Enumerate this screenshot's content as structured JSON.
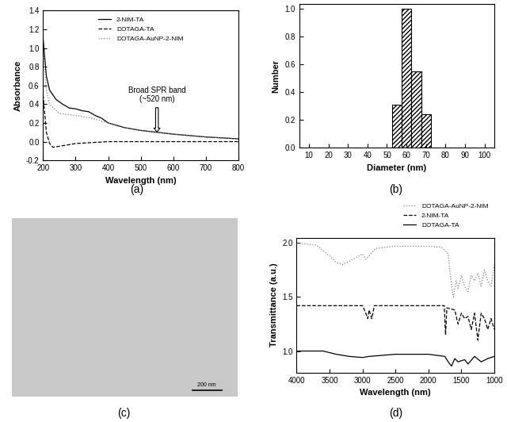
{
  "chart_data": [
    {
      "type": "line",
      "caption": "(a)",
      "x_label": "Wavelength (nm)",
      "y_label": "Absorbance",
      "xlim": [
        200,
        800
      ],
      "xticks": [
        200,
        300,
        400,
        500,
        600,
        700,
        800
      ],
      "ylim": [
        -0.2,
        1.4
      ],
      "yticks": [
        -0.2,
        {
          "value": 0.0,
          "label": "0.0"
        },
        0.2,
        0.4,
        0.6,
        0.8,
        {
          "value": 1.0,
          "label": "1.0"
        },
        1.2,
        1.4
      ],
      "grid": false,
      "legend": "upper center",
      "annotations": [
        {
          "text": "Broad SPR band\n(~520 nm)",
          "x": 550,
          "y": 0.08
        }
      ],
      "series": [
        {
          "name": "2-NIM-TA",
          "color": "#000000",
          "line_style": "solid",
          "x": [
            200,
            210,
            220,
            240,
            260,
            280,
            300,
            320,
            340,
            360,
            380,
            400,
            450,
            500,
            550,
            600,
            700,
            800
          ],
          "values": [
            1.1,
            0.7,
            0.55,
            0.45,
            0.4,
            0.36,
            0.35,
            0.33,
            0.32,
            0.28,
            0.25,
            0.2,
            0.15,
            0.12,
            0.1,
            0.08,
            0.05,
            0.03
          ]
        },
        {
          "name": "DOTAGA-TA",
          "color": "#000000",
          "line_style": "dashed",
          "x": [
            200,
            210,
            220,
            230,
            250,
            300,
            400,
            800
          ],
          "values": [
            0.5,
            0.1,
            -0.02,
            -0.06,
            -0.05,
            -0.02,
            0.0,
            0.0
          ]
        },
        {
          "name": "DOTAGA-AuNP-2-NIM",
          "color": "#808080",
          "line_style": "dotted",
          "x": [
            200,
            210,
            220,
            250,
            300,
            350,
            400,
            450,
            500,
            550,
            600,
            700,
            800
          ],
          "values": [
            1.0,
            0.55,
            0.4,
            0.3,
            0.28,
            0.25,
            0.2,
            0.15,
            0.12,
            0.1,
            0.08,
            0.05,
            0.03
          ]
        }
      ]
    },
    {
      "type": "histogram",
      "caption": "(b)",
      "x_label": "Diameter (nm)",
      "y_label": "Number",
      "xlim": [
        5,
        105
      ],
      "xticks": [
        10,
        20,
        30,
        40,
        50,
        60,
        70,
        80,
        90,
        100
      ],
      "ylim": [
        0,
        1.03
      ],
      "yticks": [
        {
          "value": 0.0,
          "label": "0.0"
        },
        0.2,
        0.4,
        0.6,
        0.8,
        {
          "value": 1.0,
          "label": "1.0"
        }
      ],
      "grid": false,
      "color": "#ffffff",
      "bins": [
        52.5,
        57.5,
        62.5,
        67.5,
        72.5
      ],
      "values": [
        0.31,
        1.0,
        0.55,
        0.24
      ]
    },
    {
      "type": "image",
      "caption": "(c)",
      "scale_bar": "200 nm"
    },
    {
      "type": "line",
      "caption": "(d)",
      "x_label": "Wavelength (nm)",
      "y_label": "Transmittance (a.u.)",
      "xlim": [
        4000,
        1000
      ],
      "xticks": [
        4000,
        3500,
        3000,
        2500,
        2000,
        1500,
        1000
      ],
      "ylim": [
        0.8,
        2.05
      ],
      "yticks": [
        {
          "value": 1.0,
          "label": "1.0"
        },
        1.5,
        {
          "value": 2.0,
          "label": "2.0"
        }
      ],
      "grid": false,
      "legend": "upper right",
      "series": [
        {
          "name": "DOTAGA-AuNP-2-NIM",
          "color": "#808080",
          "line_style": "dotted",
          "x": [
            4000,
            3700,
            3500,
            3400,
            3300,
            3200,
            3000,
            2950,
            2900,
            2800,
            2500,
            2000,
            1800,
            1700,
            1650,
            1620,
            1580,
            1550,
            1500,
            1450,
            1400,
            1350,
            1300,
            1250,
            1200,
            1150,
            1100,
            1050,
            1000
          ],
          "values": [
            2.0,
            1.98,
            1.88,
            1.82,
            1.8,
            1.83,
            1.9,
            1.85,
            1.88,
            1.95,
            1.97,
            1.97,
            1.96,
            1.9,
            1.6,
            1.5,
            1.65,
            1.58,
            1.7,
            1.6,
            1.55,
            1.7,
            1.65,
            1.72,
            1.6,
            1.75,
            1.65,
            1.6,
            1.8
          ]
        },
        {
          "name": "2-NIM-TA",
          "color": "#000000",
          "line_style": "dashed",
          "x": [
            4000,
            3000,
            2950,
            2920,
            2900,
            2860,
            2820,
            2000,
            1760,
            1740,
            1720,
            1600,
            1550,
            1500,
            1450,
            1400,
            1350,
            1300,
            1250,
            1200,
            1150,
            1100,
            1050,
            1000
          ],
          "values": [
            1.42,
            1.42,
            1.35,
            1.3,
            1.38,
            1.3,
            1.42,
            1.42,
            1.42,
            1.15,
            1.4,
            1.38,
            1.25,
            1.35,
            1.3,
            1.32,
            1.2,
            1.35,
            1.1,
            1.35,
            1.3,
            1.2,
            1.3,
            1.2
          ]
        },
        {
          "name": "DOTAGA-TA",
          "color": "#000000",
          "line_style": "solid",
          "x": [
            4000,
            3600,
            3400,
            3200,
            3000,
            2900,
            2500,
            2000,
            1750,
            1700,
            1650,
            1600,
            1550,
            1450,
            1400,
            1300,
            1200,
            1100,
            1000
          ],
          "values": [
            1.0,
            1.0,
            0.97,
            0.95,
            0.94,
            0.95,
            0.97,
            0.97,
            0.95,
            0.9,
            0.86,
            0.93,
            0.9,
            0.92,
            0.88,
            0.95,
            0.9,
            0.93,
            0.95
          ]
        }
      ]
    }
  ]
}
